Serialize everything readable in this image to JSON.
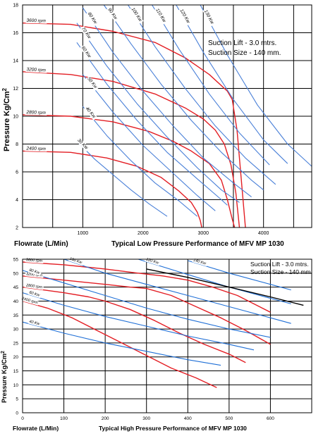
{
  "chart_data": [
    {
      "type": "line",
      "title": "Typical Low Pressure Performance of  MFV MP 1030",
      "xlabel": "Flowrate (L/Min)",
      "ylabel": "Pressure Kg/Cm",
      "ylabel_sup": "2",
      "xlim": [
        0,
        4800
      ],
      "ylim": [
        2,
        18
      ],
      "xticks": [
        "1000",
        "2000",
        "3000",
        "4000"
      ],
      "xtick_values": [
        1000,
        2000,
        3000,
        4000
      ],
      "yticks": [
        "2",
        "4",
        "6",
        "8",
        "10",
        "12",
        "14",
        "16",
        "18"
      ],
      "ytick_values": [
        2,
        4,
        6,
        8,
        10,
        12,
        14,
        16,
        18
      ],
      "grid": true,
      "annotation": {
        "line1": "Suction Lift - 3.0 mtrs.",
        "line2": "Suction Size - 140 mm."
      },
      "colors": {
        "rpm": "#e31e24",
        "power": "#4a80d8",
        "grid": "#000000"
      },
      "series": [
        {
          "name": "3600 rpm",
          "kind": "rpm",
          "x": [
            0,
            800,
            1500,
            2200,
            2700,
            3100,
            3400,
            3480,
            3560,
            3620,
            3700
          ],
          "y": [
            16.7,
            16.6,
            16.1,
            15.3,
            14.2,
            13.0,
            11.8,
            11.2,
            9.0,
            6.0,
            2.0
          ]
        },
        {
          "name": "3200 rpm",
          "kind": "rpm",
          "x": [
            0,
            800,
            1500,
            2200,
            2700,
            3000,
            3200,
            3350,
            3460,
            3540,
            3600
          ],
          "y": [
            13.2,
            13.0,
            12.5,
            11.6,
            10.6,
            9.8,
            9.0,
            8.0,
            6.5,
            4.5,
            2.0
          ]
        },
        {
          "name": "2800 rpm",
          "kind": "rpm",
          "x": [
            0,
            800,
            1500,
            2100,
            2500,
            2800,
            3100,
            3300,
            3400,
            3480,
            3520
          ],
          "y": [
            10.1,
            10.0,
            9.6,
            8.9,
            8.2,
            7.5,
            6.6,
            5.4,
            4.0,
            2.6,
            2.0
          ]
        },
        {
          "name": "2400 rpm",
          "kind": "rpm",
          "x": [
            0,
            800,
            1400,
            1900,
            2300,
            2600,
            2800,
            2900,
            2950,
            2975
          ],
          "y": [
            7.5,
            7.4,
            7.0,
            6.4,
            5.6,
            4.6,
            3.8,
            3.1,
            2.5,
            2.0
          ]
        },
        {
          "name": "30 Kw",
          "kind": "power",
          "x": [
            900,
            1200,
            1500,
            1800,
            2100,
            2400
          ],
          "y": [
            8.2,
            6.9,
            5.8,
            4.7,
            3.7,
            2.8
          ]
        },
        {
          "name": "40 Kw",
          "kind": "power",
          "x": [
            1000,
            1400,
            1800,
            2200,
            2600,
            2900
          ],
          "y": [
            10.7,
            8.6,
            6.8,
            5.2,
            3.9,
            2.8
          ]
        },
        {
          "name": "50 Kw",
          "kind": "power",
          "x": [
            1000,
            1500,
            2000,
            2500,
            2900,
            3200
          ],
          "y": [
            13.0,
            10.3,
            7.9,
            5.9,
            4.3,
            3.2
          ]
        },
        {
          "name": "60 Kw",
          "kind": "power",
          "x": [
            900,
            1400,
            1900,
            2400,
            2900,
            3300,
            3400
          ],
          "y": [
            15.3,
            12.3,
            9.7,
            7.4,
            5.5,
            4.0,
            3.6
          ]
        },
        {
          "name": "70 Kw",
          "kind": "power",
          "x": [
            900,
            1400,
            1900,
            2400,
            2900,
            3300,
            3600
          ],
          "y": [
            16.7,
            13.6,
            10.9,
            8.5,
            6.3,
            4.7,
            3.8
          ]
        },
        {
          "name": "80 Kw",
          "kind": "power",
          "x": [
            1000,
            1500,
            2000,
            2500,
            3000,
            3500,
            3800
          ],
          "y": [
            17.8,
            14.6,
            11.8,
            9.3,
            7.0,
            5.2,
            4.2
          ]
        },
        {
          "name": "90 Kw",
          "kind": "power",
          "x": [
            1350,
            1800,
            2300,
            2800,
            3300,
            3800,
            4000
          ],
          "y": [
            18.0,
            15.2,
            12.3,
            9.7,
            7.4,
            5.4,
            4.7
          ]
        },
        {
          "name": "100 Kw",
          "kind": "power",
          "x": [
            1750,
            2200,
            2700,
            3200,
            3700,
            4200
          ],
          "y": [
            18.0,
            15.0,
            12.0,
            9.3,
            7.0,
            5.1
          ]
        },
        {
          "name": "110 Kw",
          "kind": "power",
          "x": [
            2150,
            2600,
            3100,
            3600,
            4100
          ],
          "y": [
            18.0,
            14.8,
            11.6,
            8.8,
            6.5
          ]
        },
        {
          "name": "120 Kw",
          "kind": "power",
          "x": [
            2550,
            3000,
            3500,
            4000,
            4400
          ],
          "y": [
            18.0,
            14.6,
            11.2,
            8.3,
            6.6
          ]
        },
        {
          "name": "130 Kw",
          "kind": "power",
          "x": [
            2950,
            3400,
            3900,
            4400,
            4800
          ],
          "y": [
            18.0,
            14.4,
            10.8,
            8.0,
            6.4
          ]
        }
      ]
    },
    {
      "type": "line",
      "title": "Typical High Pressure Performance of  MFV MP 1030",
      "xlabel": "Flowrate (L/Min)",
      "ylabel": "Pressure Kg/Cm",
      "ylabel_sup": "2",
      "xlim": [
        0,
        700
      ],
      "ylim": [
        0,
        55
      ],
      "xticks": [
        "0",
        "100",
        "200",
        "300",
        "400",
        "500",
        "600"
      ],
      "xtick_values": [
        0,
        100,
        200,
        300,
        400,
        500,
        600
      ],
      "yticks": [
        "0",
        "5",
        "10",
        "15",
        "20",
        "25",
        "30",
        "35",
        "40",
        "45",
        "50",
        "55"
      ],
      "ytick_values": [
        0,
        5,
        10,
        15,
        20,
        25,
        30,
        35,
        40,
        45,
        50,
        55
      ],
      "grid": true,
      "annotation": {
        "line1": "Suction Lift - 3.0 mtrs.",
        "line2": "Suction Size - 140 mm."
      },
      "colors": {
        "rpm": "#e31e24",
        "power": "#1f6fd6",
        "limit": "#000000",
        "grid": "#000000"
      },
      "series": [
        {
          "name": "3600 rpm",
          "kind": "rpm",
          "x": [
            0,
            100,
            200,
            280,
            340,
            400,
            460,
            520,
            560,
            600
          ],
          "y": [
            54.0,
            53.0,
            51.5,
            50.0,
            49.0,
            47.5,
            45.0,
            42.0,
            39.0,
            36.0
          ]
        },
        {
          "name": "3200 rpm",
          "kind": "rpm",
          "x": [
            0,
            100,
            200,
            260,
            300,
            360,
            420,
            480,
            540,
            600
          ],
          "y": [
            49.0,
            47.5,
            46.0,
            45.0,
            44.5,
            42.0,
            38.0,
            34.0,
            29.5,
            24.5
          ]
        },
        {
          "name": "2800 rpm",
          "kind": "rpm",
          "x": [
            0,
            100,
            160,
            200,
            260,
            320,
            380,
            440,
            500,
            540
          ],
          "y": [
            45.0,
            43.0,
            41.5,
            40.0,
            37.0,
            33.0,
            28.5,
            24.5,
            21.0,
            18.0
          ]
        },
        {
          "name": "2400 rpm",
          "kind": "rpm",
          "x": [
            0,
            60,
            120,
            180,
            240,
            300,
            360,
            420,
            470
          ],
          "y": [
            40.0,
            37.5,
            34.0,
            29.5,
            25.0,
            20.5,
            16.0,
            12.5,
            9.0
          ]
        },
        {
          "name": "140 Kw",
          "kind": "power",
          "x": [
            400,
            500,
            600,
            650
          ],
          "y": [
            54.5,
            50.0,
            46.0,
            44.0
          ]
        },
        {
          "name": "120 Kw",
          "kind": "power",
          "x": [
            280,
            400,
            500,
            600,
            650
          ],
          "y": [
            55.0,
            49.5,
            45.0,
            41.0,
            39.0
          ]
        },
        {
          "name": "100 Kw",
          "kind": "power",
          "x": [
            100,
            200,
            300,
            400,
            500,
            600,
            650
          ],
          "y": [
            55.0,
            50.0,
            46.0,
            42.0,
            38.0,
            34.0,
            32.0
          ]
        },
        {
          "name": "80 Kw",
          "kind": "power",
          "x": [
            0,
            100,
            200,
            300,
            400,
            500,
            600
          ],
          "y": [
            51.0,
            46.5,
            42.0,
            37.5,
            33.5,
            30.0,
            27.0
          ]
        },
        {
          "name": "60 Kw",
          "kind": "power",
          "x": [
            0,
            100,
            200,
            300,
            400,
            500,
            560
          ],
          "y": [
            43.0,
            38.5,
            34.5,
            31.0,
            27.5,
            24.5,
            22.5
          ]
        },
        {
          "name": "40 Kw",
          "kind": "power",
          "x": [
            0,
            100,
            200,
            300,
            400,
            480
          ],
          "y": [
            32.5,
            28.5,
            25.0,
            22.0,
            19.0,
            17.0
          ]
        },
        {
          "name": "",
          "kind": "limit",
          "x": [
            300,
            400,
            500,
            600,
            680
          ],
          "y": [
            51.5,
            48.5,
            45.0,
            41.5,
            38.5
          ]
        }
      ]
    }
  ]
}
